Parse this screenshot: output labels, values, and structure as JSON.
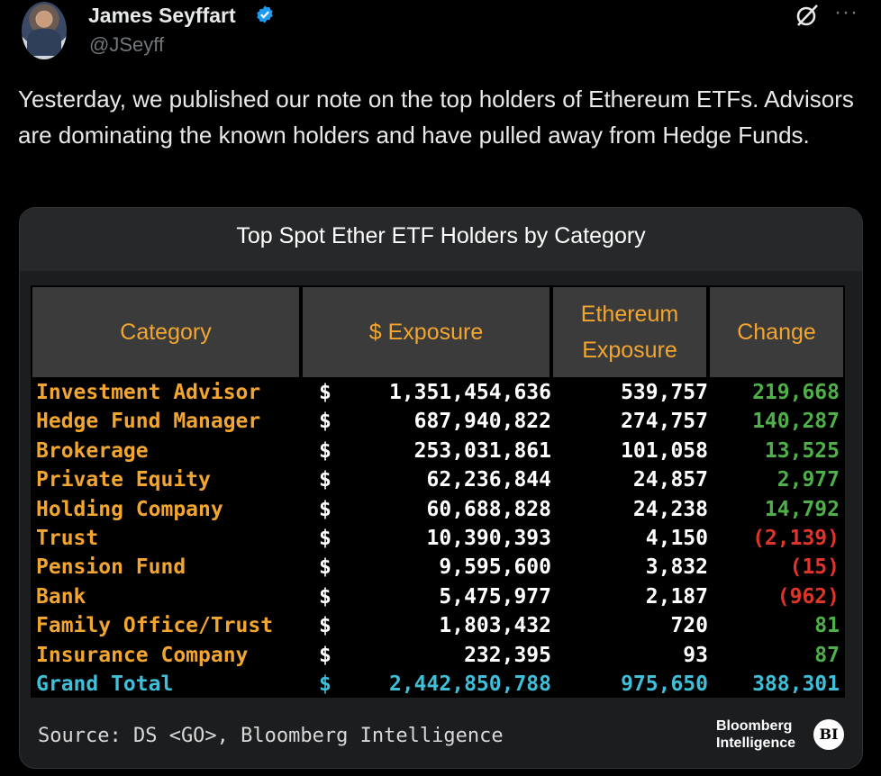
{
  "author": {
    "name": "James Seyffart",
    "handle": "@JSeyff"
  },
  "tweet": {
    "text": "Yesterday, we published our note on the top holders of Ethereum ETFs. Advisors are dominating the known holders and have pulled away from Hedge Funds."
  },
  "icons": {
    "verified": "verified-badge-icon",
    "grok": "grok-icon",
    "more": "more-icon"
  },
  "colors": {
    "accent": "#f2a630",
    "positive": "#4fb04a",
    "negative": "#e0342a",
    "total": "#3fbfd8",
    "verified": "#1d9bf0"
  },
  "chart_data": {
    "type": "table",
    "title": "Top Spot Ether ETF Holders by Category",
    "columns": [
      "Category",
      "$ Exposure",
      "Ethereum Exposure",
      "Change"
    ],
    "rows": [
      {
        "category": "Investment Advisor",
        "dollar_prefix": "$",
        "exposure": "1,351,454,636",
        "eth": "539,757",
        "change": "219,668",
        "negative": false
      },
      {
        "category": "Hedge Fund Manager",
        "dollar_prefix": "$",
        "exposure": "687,940,822",
        "eth": "274,757",
        "change": "140,287",
        "negative": false
      },
      {
        "category": "Brokerage",
        "dollar_prefix": "$",
        "exposure": "253,031,861",
        "eth": "101,058",
        "change": "13,525",
        "negative": false
      },
      {
        "category": "Private Equity",
        "dollar_prefix": "$",
        "exposure": "62,236,844",
        "eth": "24,857",
        "change": "2,977",
        "negative": false
      },
      {
        "category": "Holding Company",
        "dollar_prefix": "$",
        "exposure": "60,688,828",
        "eth": "24,238",
        "change": "14,792",
        "negative": false
      },
      {
        "category": "Trust",
        "dollar_prefix": "$",
        "exposure": "10,390,393",
        "eth": "4,150",
        "change": "(2,139)",
        "negative": true
      },
      {
        "category": "Pension Fund",
        "dollar_prefix": "$",
        "exposure": "9,595,600",
        "eth": "3,832",
        "change": "(15)",
        "negative": true
      },
      {
        "category": "Bank",
        "dollar_prefix": "$",
        "exposure": "5,475,977",
        "eth": "2,187",
        "change": "(962)",
        "negative": true
      },
      {
        "category": "Family Office/Trust",
        "dollar_prefix": "$",
        "exposure": "1,803,432",
        "eth": "720",
        "change": "81",
        "negative": false
      },
      {
        "category": "Insurance Company",
        "dollar_prefix": "$",
        "exposure": "232,395",
        "eth": "93",
        "change": "87",
        "negative": false
      }
    ],
    "total": {
      "category": "Grand Total",
      "dollar_prefix": "$",
      "exposure": "2,442,850,788",
      "eth": "975,650",
      "change": "388,301"
    },
    "source": "Source: DS <GO>, Bloomberg Intelligence",
    "logo_text": [
      "Bloomberg",
      "Intelligence"
    ],
    "badge": "BI"
  }
}
